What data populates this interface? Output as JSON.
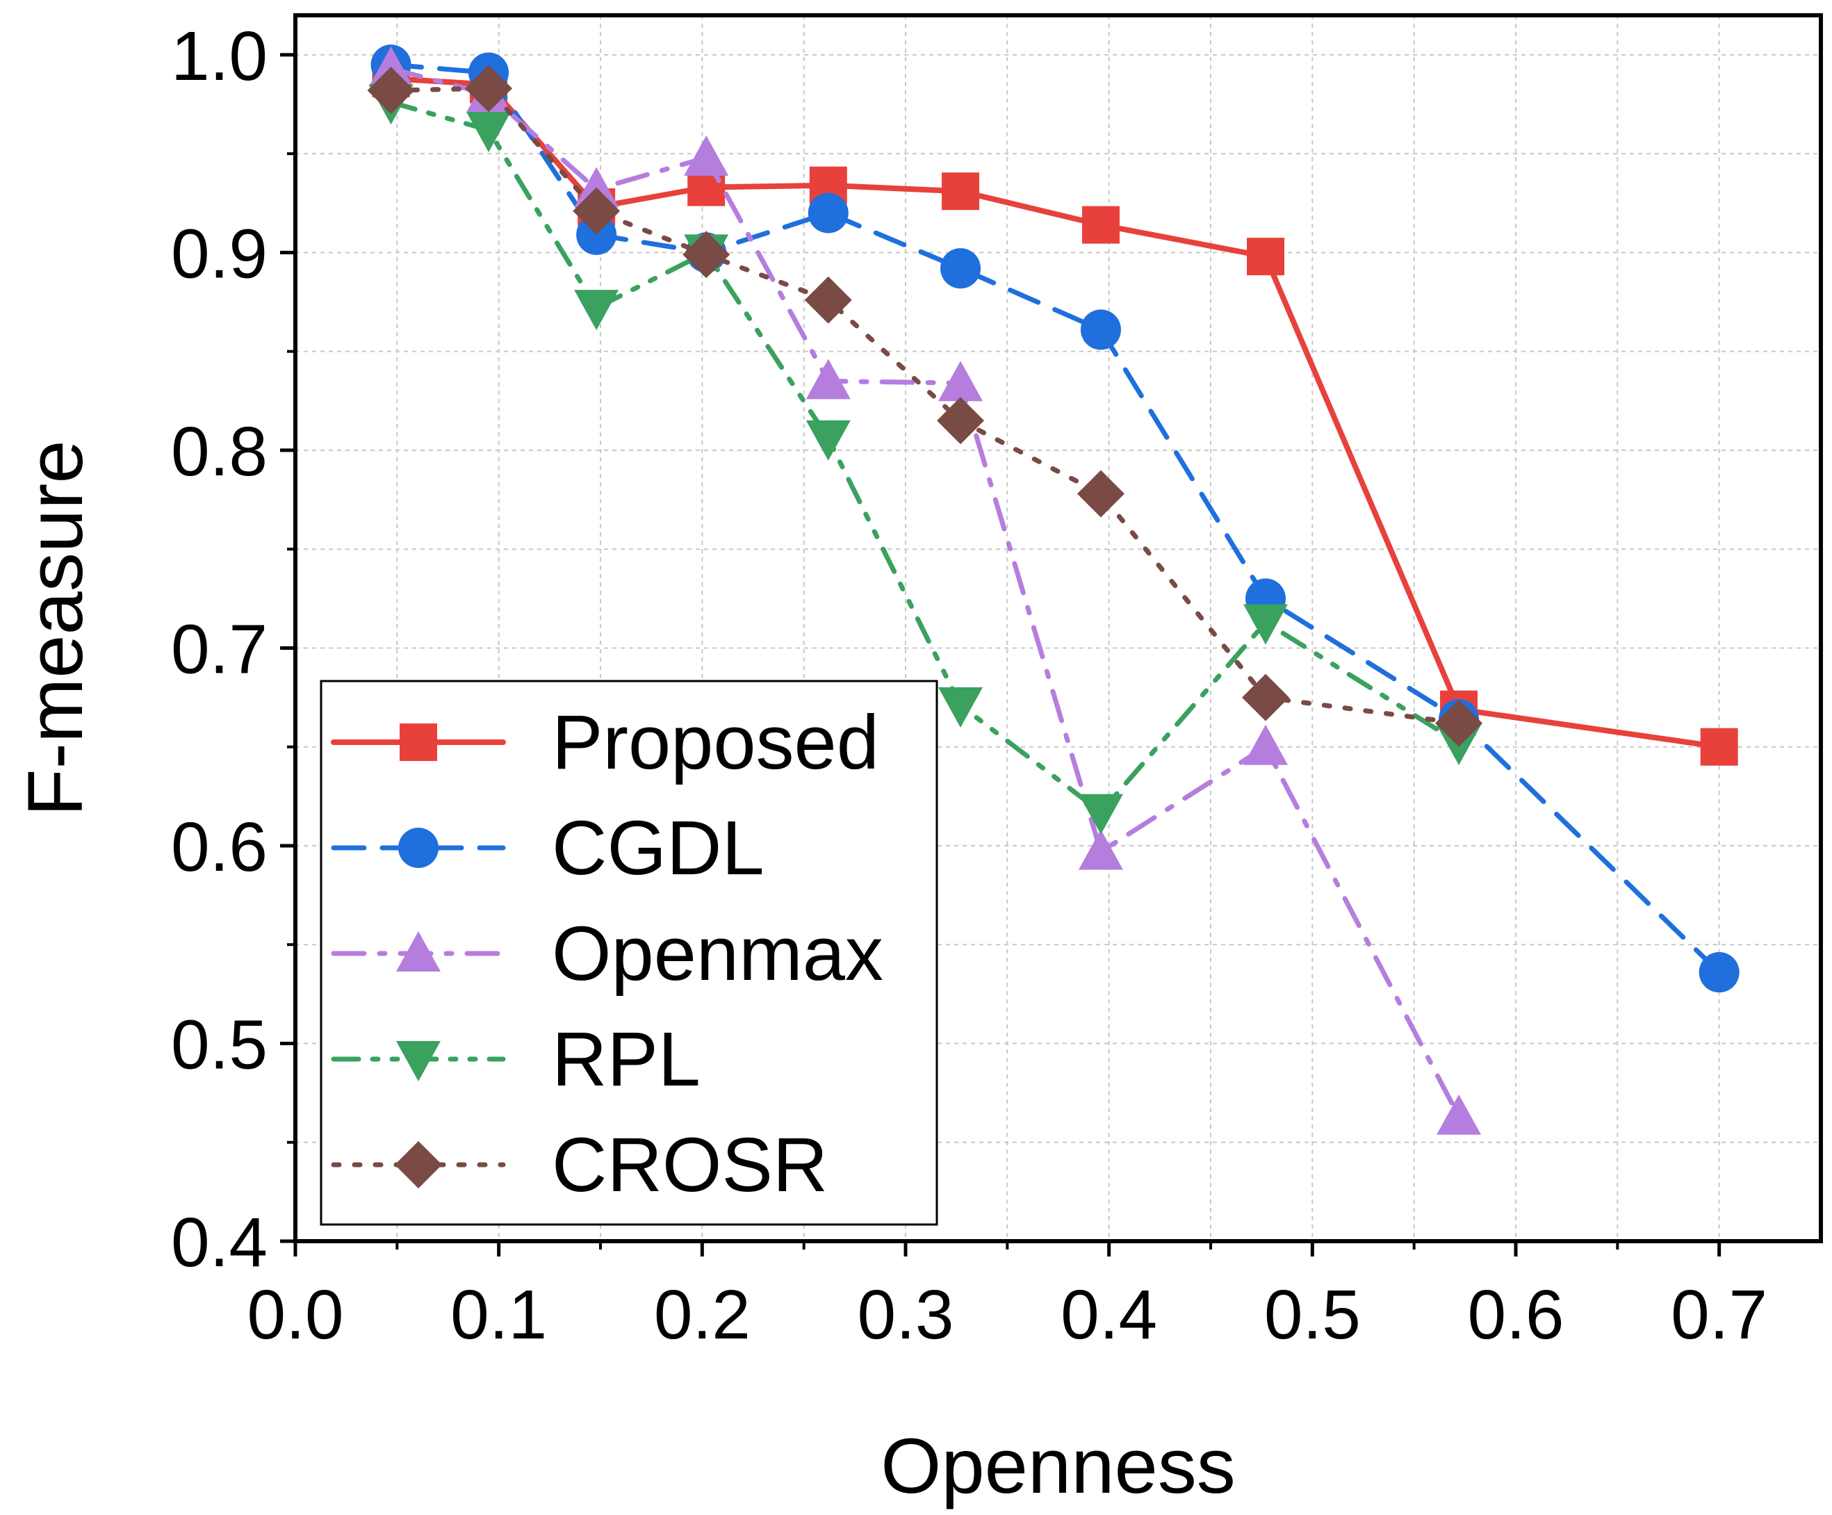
{
  "chart_data": {
    "type": "line",
    "xlabel": "Openness",
    "ylabel": "F-measure",
    "xlim": [
      0.0,
      0.75
    ],
    "ylim": [
      0.4,
      1.02
    ],
    "grid": true,
    "legend_position": "bottom-left",
    "x_ticks": [
      "0.0",
      "0.1",
      "0.2",
      "0.3",
      "0.4",
      "0.5",
      "0.6",
      "0.7"
    ],
    "y_ticks": [
      "0.4",
      "0.5",
      "0.6",
      "0.7",
      "0.8",
      "0.9",
      "1.0"
    ],
    "series": [
      {
        "name": "Proposed",
        "color": "#e8413c",
        "marker": "square",
        "line": "solid",
        "points": [
          [
            0.047,
            0.988
          ],
          [
            0.095,
            0.985
          ],
          [
            0.148,
            0.923
          ],
          [
            0.202,
            0.933
          ],
          [
            0.262,
            0.934
          ],
          [
            0.327,
            0.931
          ],
          [
            0.396,
            0.914
          ],
          [
            0.477,
            0.898
          ],
          [
            0.572,
            0.669
          ],
          [
            0.7,
            0.65
          ]
        ]
      },
      {
        "name": "CGDL",
        "color": "#1f6fdc",
        "marker": "circle",
        "line": "dash",
        "points": [
          [
            0.047,
            0.995
          ],
          [
            0.095,
            0.991
          ],
          [
            0.148,
            0.909
          ],
          [
            0.202,
            0.9
          ],
          [
            0.262,
            0.92
          ],
          [
            0.327,
            0.892
          ],
          [
            0.396,
            0.861
          ],
          [
            0.477,
            0.725
          ],
          [
            0.572,
            0.664
          ],
          [
            0.7,
            0.536
          ]
        ]
      },
      {
        "name": "Openmax",
        "color": "#b57ede",
        "marker": "triangle-up",
        "line": "dashdot",
        "points": [
          [
            0.047,
            0.993
          ],
          [
            0.095,
            0.98
          ],
          [
            0.148,
            0.932
          ],
          [
            0.202,
            0.948
          ],
          [
            0.262,
            0.835
          ],
          [
            0.327,
            0.834
          ],
          [
            0.396,
            0.597
          ],
          [
            0.477,
            0.65
          ],
          [
            0.572,
            0.463
          ]
        ]
      },
      {
        "name": "RPL",
        "color": "#3aa15f",
        "marker": "triangle-down",
        "line": "dashdotdot",
        "points": [
          [
            0.047,
            0.976
          ],
          [
            0.095,
            0.962
          ],
          [
            0.148,
            0.872
          ],
          [
            0.202,
            0.9
          ],
          [
            0.262,
            0.806
          ],
          [
            0.327,
            0.671
          ],
          [
            0.396,
            0.617
          ],
          [
            0.477,
            0.713
          ],
          [
            0.572,
            0.652
          ]
        ]
      },
      {
        "name": "CROSR",
        "color": "#7a4a45",
        "marker": "diamond",
        "line": "dot",
        "points": [
          [
            0.047,
            0.982
          ],
          [
            0.095,
            0.983
          ],
          [
            0.148,
            0.921
          ],
          [
            0.202,
            0.899
          ],
          [
            0.262,
            0.876
          ],
          [
            0.327,
            0.815
          ],
          [
            0.396,
            0.778
          ],
          [
            0.477,
            0.675
          ],
          [
            0.572,
            0.662
          ]
        ]
      }
    ]
  }
}
